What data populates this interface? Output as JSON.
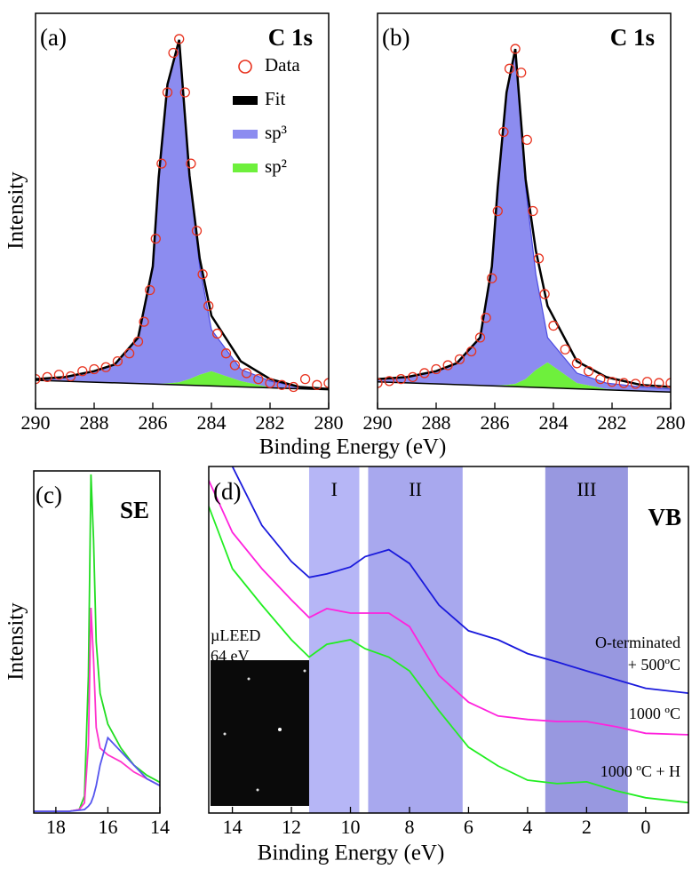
{
  "chart_data": [
    {
      "type": "line",
      "panel_label": "(a)",
      "title": "C 1s",
      "ylabel": "Intensity",
      "xlabel": "Binding Energy (eV)",
      "legend": "upper right",
      "xlim": [
        290,
        280
      ],
      "xticks": [
        290,
        288,
        286,
        284,
        282,
        280
      ],
      "ylim": [
        0,
        100
      ],
      "x": [
        290,
        289,
        288,
        287.3,
        286.5,
        286,
        285.8,
        285.5,
        285.1,
        284.75,
        284.4,
        284,
        283,
        282,
        281,
        280
      ],
      "series": [
        {
          "name": "Data",
          "color": "#e8321e",
          "style": "markers",
          "x": [
            290,
            289.6,
            289.2,
            288.8,
            288.4,
            288,
            287.6,
            287.2,
            286.8,
            286.5,
            286.3,
            286.1,
            285.9,
            285.7,
            285.5,
            285.3,
            285.1,
            284.9,
            284.7,
            284.5,
            284.3,
            284.1,
            283.8,
            283.5,
            283.2,
            282.8,
            282.4,
            282,
            281.6,
            281.2,
            280.8,
            280.4,
            280
          ],
          "values": [
            7.5,
            8,
            8.6,
            8.2,
            9.5,
            10,
            10.5,
            12,
            14,
            17,
            22,
            30,
            43,
            62,
            80,
            90,
            93.5,
            80,
            62,
            45,
            34,
            26,
            19,
            14,
            11,
            9,
            7.5,
            6.5,
            6,
            5.5,
            7.5,
            6,
            6.5
          ]
        },
        {
          "name": "Fit",
          "color": "#000000",
          "style": "line",
          "values": [
            7.5,
            8,
            9.5,
            11.2,
            18,
            36,
            58.4,
            82,
            93.3,
            59,
            38,
            23.5,
            12,
            7.5,
            5.5,
            5
          ]
        },
        {
          "name": "sp³",
          "color": "#8c8cf0",
          "style": "area",
          "values": [
            7.5,
            8,
            9.5,
            11.2,
            18,
            36,
            58.4,
            82,
            93.3,
            58.4,
            36,
            20,
            10,
            7,
            5.5,
            5
          ]
        },
        {
          "name": "sp²",
          "color": "#6ef03c",
          "style": "area",
          "values": [
            7.2,
            7,
            6.8,
            6.6,
            6.4,
            6.3,
            6.3,
            6.4,
            6.7,
            7.5,
            8.6,
            9.5,
            7,
            5.4,
            5,
            4.8
          ]
        }
      ]
    },
    {
      "type": "line",
      "panel_label": "(b)",
      "title": "C 1s",
      "xlim": [
        290,
        280
      ],
      "xticks": [
        290,
        288,
        286,
        284,
        282,
        280
      ],
      "ylim": [
        0,
        100
      ],
      "x": [
        290,
        289,
        288,
        287.3,
        286.5,
        286.1,
        285.9,
        285.6,
        285.3,
        284.95,
        284.6,
        284.2,
        283.2,
        282.2,
        281,
        280
      ],
      "series": [
        {
          "name": "Data",
          "color": "#e8321e",
          "style": "markers",
          "x": [
            290,
            289.6,
            289.2,
            288.8,
            288.4,
            288,
            287.6,
            287.2,
            286.8,
            286.5,
            286.3,
            286.1,
            285.9,
            285.7,
            285.5,
            285.3,
            285.1,
            284.9,
            284.7,
            284.5,
            284.3,
            284,
            283.6,
            283.2,
            282.8,
            282.4,
            282,
            281.6,
            281.2,
            280.8,
            280.4,
            280
          ],
          "values": [
            6.5,
            7,
            7.5,
            8,
            9,
            10,
            11,
            12.5,
            14.5,
            18,
            23,
            33,
            50,
            70,
            86,
            91,
            85,
            68,
            50,
            38,
            29,
            21,
            15,
            11.5,
            9.5,
            7.5,
            6.8,
            6.5,
            6.3,
            6.8,
            6.5,
            6.5
          ]
        },
        {
          "name": "Fit",
          "color": "#000000",
          "style": "line",
          "values": [
            7.5,
            8,
            9.5,
            11.5,
            18,
            36,
            56,
            80,
            91,
            58,
            40,
            26,
            12,
            8,
            6,
            5.5
          ]
        },
        {
          "name": "sp³",
          "color": "#8c8cf0",
          "style": "area",
          "values": [
            7.5,
            8,
            9.5,
            11.5,
            18,
            36,
            56,
            80,
            91,
            56,
            34,
            18,
            9,
            6.5,
            5.5,
            5
          ]
        },
        {
          "name": "sp²",
          "color": "#6ef03c",
          "style": "area",
          "values": [
            6.8,
            6.6,
            6.4,
            6.2,
            6,
            5.9,
            5.9,
            6,
            6.3,
            7.5,
            9.8,
            11.7,
            6.5,
            5,
            4.5,
            4.2
          ]
        }
      ]
    },
    {
      "type": "line",
      "panel_label": "(c)",
      "title": "SE",
      "ylabel": "Intensity",
      "xlim": [
        18.85,
        14
      ],
      "xticks": [
        18,
        16,
        14
      ],
      "ylim": [
        0,
        100
      ],
      "x": [
        18.85,
        17.5,
        17.1,
        16.9,
        16.75,
        16.65,
        16.55,
        16.45,
        16.3,
        16,
        15.5,
        15,
        14.5,
        14
      ],
      "series": [
        {
          "color": "#22dd22",
          "style": "line",
          "values": [
            0.5,
            0.5,
            1,
            5,
            40,
            99,
            80,
            50,
            35,
            26,
            19,
            14,
            11,
            9
          ]
        },
        {
          "color": "#ff33cc",
          "style": "line",
          "values": [
            0.5,
            0.5,
            1,
            3,
            20,
            60,
            45,
            25,
            19,
            17,
            15,
            12,
            10,
            8
          ]
        },
        {
          "color": "#5555ee",
          "style": "line",
          "values": [
            0.5,
            0.5,
            0.8,
            1,
            2,
            3,
            5,
            8,
            14,
            22,
            18,
            14,
            10,
            8
          ]
        }
      ]
    },
    {
      "type": "line",
      "panel_label": "(d)",
      "title": "VB",
      "xlabel": "Binding Energy (eV)",
      "xlim": [
        14.8,
        -1.45
      ],
      "xticks": [
        14,
        12,
        10,
        8,
        6,
        4,
        2,
        0
      ],
      "ylim": [
        0,
        100
      ],
      "inset_label": [
        "µLEED",
        "64 eV"
      ],
      "bands": [
        {
          "label": "I",
          "range": [
            11.4,
            9.7
          ],
          "color": "#b6b6f6"
        },
        {
          "label": "II",
          "range": [
            9.4,
            6.2
          ],
          "color": "#a8a8ee"
        },
        {
          "label": "III",
          "range": [
            3.4,
            0.6
          ],
          "color": "#9898e0"
        }
      ],
      "x": [
        14.8,
        14,
        13,
        12,
        11.4,
        10.8,
        10,
        9.5,
        8.7,
        8,
        7,
        6,
        5,
        4,
        3,
        2,
        1,
        0,
        -1.45
      ],
      "series": [
        {
          "name_lines": [
            "O-terminated",
            "+ 500ºC"
          ],
          "color": "#1a1adc",
          "style": "line",
          "values": [
            null,
            100,
            83,
            72.6,
            68,
            69,
            71,
            74,
            76,
            72,
            60,
            52.6,
            50,
            46,
            43.6,
            41,
            38.5,
            36,
            34.6
          ]
        },
        {
          "name_lines": [
            "1000 ºC"
          ],
          "color": "#ff22dd",
          "style": "line",
          "values": [
            96,
            81,
            70.5,
            61.5,
            56.4,
            59,
            57.7,
            57.7,
            57.7,
            53.8,
            39.7,
            32,
            28,
            27,
            26.4,
            26.4,
            24.9,
            23,
            22.6
          ]
        },
        {
          "name_lines": [
            "1000 ºC + H"
          ],
          "color": "#22ee22",
          "style": "line",
          "values": [
            88.5,
            70.5,
            60,
            50,
            45,
            48.7,
            50,
            47.4,
            45,
            41,
            29.5,
            19,
            13.6,
            9.5,
            8.5,
            9,
            6.4,
            4.4,
            3
          ]
        }
      ]
    }
  ]
}
